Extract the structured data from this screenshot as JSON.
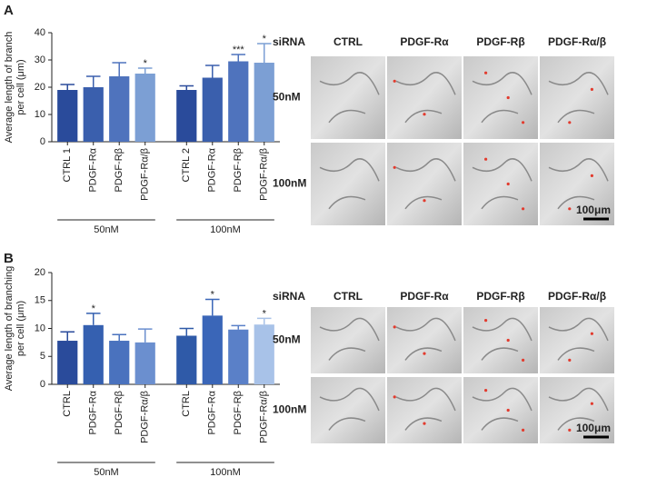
{
  "panel_labels": [
    "A",
    "B"
  ],
  "chart_data": [
    {
      "type": "bar",
      "ylabel": [
        "Average length of branch",
        "per cell (μm)"
      ],
      "categories": [
        "CTRL 1",
        "PDGF-Rα",
        "PDGF-Rβ",
        "PDGF-Rα/β",
        "CTRL 2",
        "PDGF-Rα",
        "PDGF-Rβ",
        "PDGF-Rα/β"
      ],
      "values": [
        19,
        20,
        24,
        25,
        19,
        23.5,
        29.5,
        29
      ],
      "errors": [
        2,
        4,
        5,
        2,
        1.5,
        4.5,
        2.5,
        7
      ],
      "annotations": [
        null,
        null,
        null,
        "*",
        null,
        null,
        "***",
        "*"
      ],
      "colors": [
        "#2a4b9b",
        "#3a5fad",
        "#4f73bd",
        "#7c9fd4",
        "#2a4b9b",
        "#3a5fad",
        "#4f73bd",
        "#7c9fd4"
      ],
      "groups": [
        "50nM",
        "100nM"
      ],
      "ylim": [
        0,
        40
      ],
      "yticks": [
        0,
        10,
        20,
        30,
        40
      ]
    },
    {
      "type": "bar",
      "ylabel": [
        "Average length of branching",
        "per cell (μm)"
      ],
      "categories": [
        "CTRL",
        "PDGF-Rα",
        "PDGF-Rβ",
        "PDGF-Rα/β",
        "CTRL",
        "PDGF-Rα",
        "PDGF-Rβ",
        "PDGF-Rα/β"
      ],
      "values": [
        7.8,
        10.6,
        7.8,
        7.5,
        8.7,
        12.3,
        9.8,
        10.7
      ],
      "errors": [
        1.6,
        2.1,
        1.1,
        2.4,
        1.3,
        2.9,
        0.7,
        1.1
      ],
      "annotations": [
        null,
        "*",
        null,
        null,
        null,
        "*",
        null,
        "*"
      ],
      "colors": [
        "#2a4b9b",
        "#3560b0",
        "#4a72be",
        "#6b8fcf",
        "#2f5aa8",
        "#3a66b8",
        "#5a80c8",
        "#a8c2e8"
      ],
      "groups": [
        "50nM",
        "100nM"
      ],
      "ylim": [
        0,
        20
      ],
      "yticks": [
        0,
        5,
        10,
        15,
        20
      ]
    }
  ],
  "image_grids": [
    {
      "header": "siRNA",
      "columns": [
        "CTRL",
        "PDGF-Rα",
        "PDGF-Rβ",
        "PDGF-Rα/β"
      ],
      "rows": [
        "50nM",
        "100nM"
      ],
      "scale_bar": "100μm"
    },
    {
      "header": "siRNA",
      "columns": [
        "CTRL",
        "PDGF-Rα",
        "PDGF-Rβ",
        "PDGF-Rα/β"
      ],
      "rows": [
        "50nM",
        "100nM"
      ],
      "scale_bar": "100μm"
    }
  ]
}
